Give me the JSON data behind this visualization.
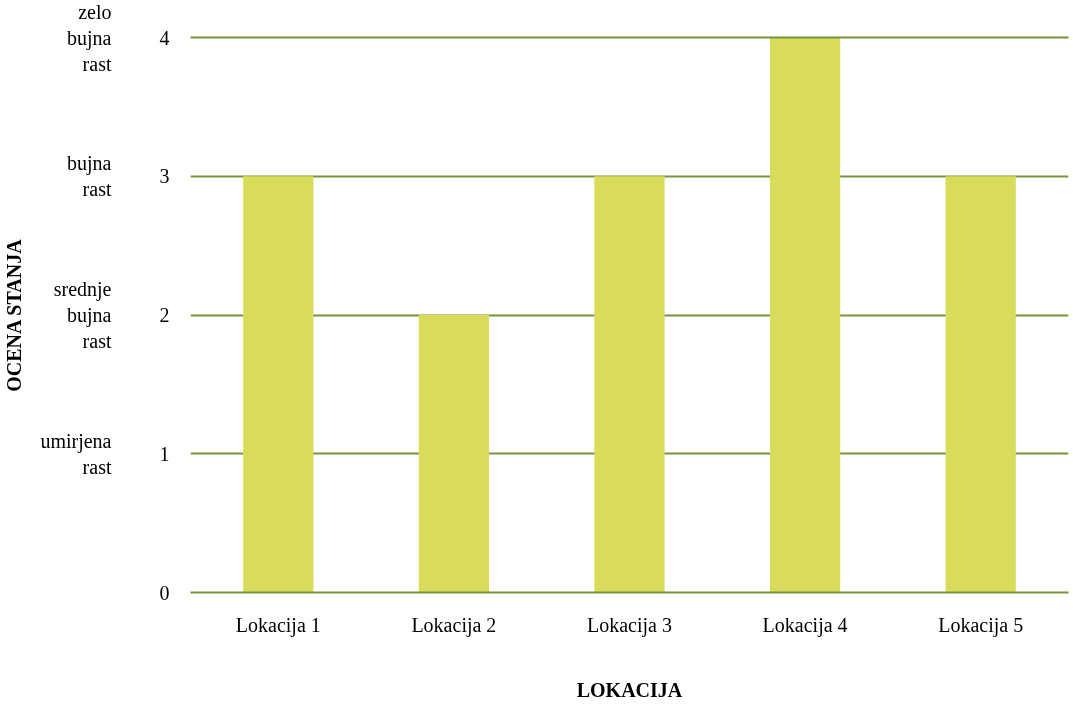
{
  "chart_data": {
    "type": "bar",
    "xlabel": "LOKACIJA",
    "categories": [
      "Lokacija 1",
      "Lokacija 2",
      "Lokacija 3",
      "Lokacija 4",
      "Lokacija 5"
    ],
    "values": [
      3,
      2,
      3,
      4,
      3
    ],
    "color": "#d9dc5a",
    "ylim": [
      0,
      4
    ],
    "yticks": [
      0,
      1,
      2,
      3,
      4
    ],
    "annotations": [
      "OCENA STANJA",
      "umirjena rast",
      "srednje bujna rast",
      "bujna rast",
      "zelo bujna rast"
    ],
    "grid": "y"
  }
}
